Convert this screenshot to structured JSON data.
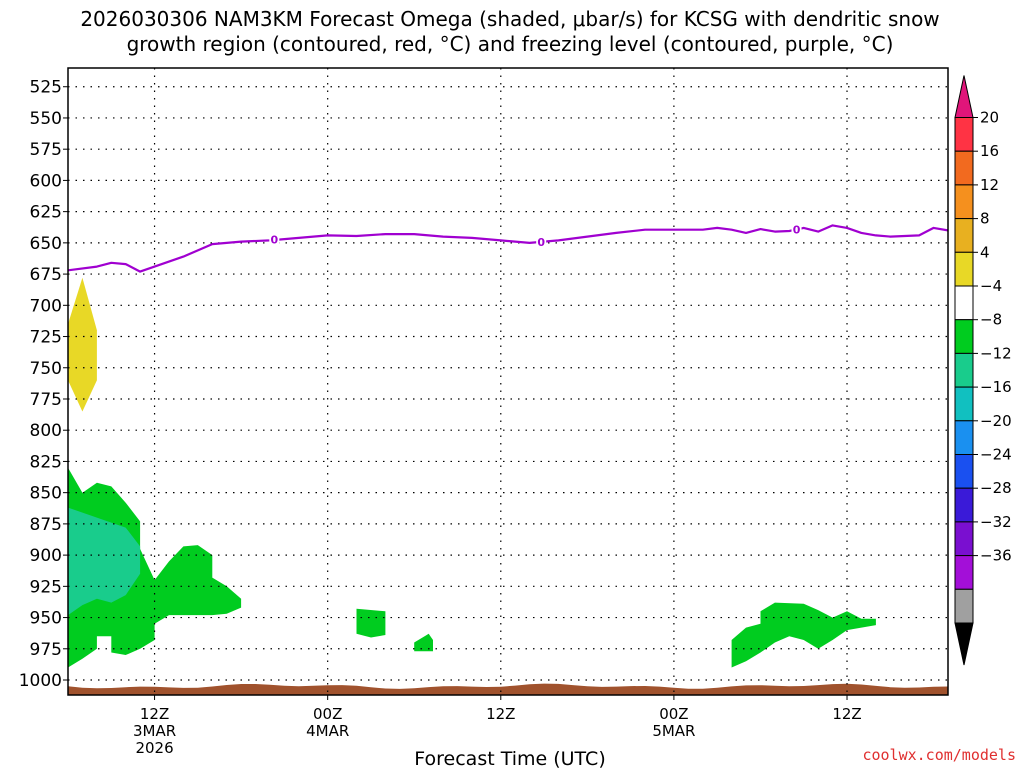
{
  "chart_data": {
    "type": "heatmap",
    "title_lines": [
      "2026030306 NAM3KM Forecast Omega (shaded, μbar/s) for KCSG with dendritic snow",
      "growth region (contoured, red, °C) and freezing level (contoured, purple, °C)"
    ],
    "xlabel": "Forecast Time (UTC)",
    "credit": "coolwx.com/models",
    "x_range_hours": [
      0,
      61
    ],
    "x_ticks": [
      {
        "hour": 6,
        "lines": [
          "12Z",
          "3MAR",
          "2026"
        ]
      },
      {
        "hour": 18,
        "lines": [
          "00Z",
          "4MAR"
        ]
      },
      {
        "hour": 30,
        "lines": [
          "12Z"
        ]
      },
      {
        "hour": 42,
        "lines": [
          "00Z",
          "5MAR"
        ]
      },
      {
        "hour": 54,
        "lines": [
          "12Z"
        ]
      }
    ],
    "y_range_mb": [
      510,
      1012
    ],
    "y_ticks": [
      "525",
      "550",
      "575",
      "600",
      "625",
      "650",
      "675",
      "700",
      "725",
      "750",
      "775",
      "800",
      "825",
      "850",
      "875",
      "900",
      "925",
      "950",
      "975",
      "1000"
    ],
    "colorbar": {
      "labels": [
        "20",
        "16",
        "12",
        "8",
        "4",
        "−4",
        "−8",
        "−12",
        "−16",
        "−20",
        "−24",
        "−28",
        "−32",
        "−36"
      ],
      "colors": [
        "#ff3344",
        "#f26a1f",
        "#f5901e",
        "#e8b020",
        "#e8d826",
        "#ffffff",
        "#00cc1f",
        "#19cc8c",
        "#11c0c0",
        "#1a90f0",
        "#1a50f0",
        "#3a1ad8",
        "#7a0fd0",
        "#a30fd8",
        "#a0a0a0"
      ],
      "top_arrow_color": "#e0157a",
      "bottom_arrow_color": "#000000"
    },
    "freezing_level": {
      "label": "0",
      "color": "#a000d0",
      "label_points": [
        [
          14.3,
          647.5
        ],
        [
          32.8,
          649.5
        ],
        [
          50.5,
          639.5
        ]
      ],
      "points": [
        [
          0,
          672
        ],
        [
          2,
          669
        ],
        [
          3,
          666
        ],
        [
          4,
          667
        ],
        [
          5,
          673
        ],
        [
          6,
          669
        ],
        [
          8,
          661
        ],
        [
          10,
          651
        ],
        [
          12,
          649
        ],
        [
          14,
          648
        ],
        [
          16,
          646
        ],
        [
          18,
          644
        ],
        [
          20,
          644.5
        ],
        [
          22,
          643
        ],
        [
          24,
          643
        ],
        [
          26,
          645
        ],
        [
          28,
          646
        ],
        [
          30,
          648
        ],
        [
          32,
          650
        ],
        [
          34,
          648
        ],
        [
          36,
          645
        ],
        [
          38,
          642
        ],
        [
          40,
          639.5
        ],
        [
          42,
          639.5
        ],
        [
          44,
          639.5
        ],
        [
          45,
          638
        ],
        [
          46,
          639.5
        ],
        [
          47,
          642
        ],
        [
          48,
          639
        ],
        [
          49,
          641
        ],
        [
          50,
          640.5
        ],
        [
          51,
          638
        ],
        [
          52,
          641
        ],
        [
          53,
          636
        ],
        [
          54,
          638
        ],
        [
          55,
          642
        ],
        [
          56,
          644
        ],
        [
          57,
          645
        ],
        [
          58,
          644.5
        ],
        [
          59,
          644
        ],
        [
          60,
          638
        ],
        [
          61,
          640
        ]
      ]
    },
    "omega_regions": [
      {
        "level": "4 to 8",
        "color": "#e8d826",
        "points": [
          [
            1,
            678
          ],
          [
            2,
            720
          ],
          [
            2,
            760
          ],
          [
            1,
            785
          ],
          [
            0,
            760
          ],
          [
            0,
            715
          ]
        ]
      },
      {
        "level": "-4 to -8",
        "color": "#00cc1f",
        "points": [
          [
            0,
            830
          ],
          [
            1,
            850
          ],
          [
            2,
            842
          ],
          [
            3,
            845
          ],
          [
            4,
            858
          ],
          [
            5,
            873
          ],
          [
            5,
            895
          ],
          [
            6,
            920
          ],
          [
            7,
            905
          ],
          [
            8,
            893
          ],
          [
            9,
            892
          ],
          [
            10,
            900
          ],
          [
            10,
            918
          ],
          [
            11,
            925
          ],
          [
            12,
            935
          ],
          [
            12,
            942
          ],
          [
            11,
            947
          ],
          [
            10,
            948
          ],
          [
            7,
            948
          ],
          [
            6,
            955
          ],
          [
            6,
            968
          ],
          [
            5,
            975
          ],
          [
            4,
            980
          ],
          [
            3,
            978
          ],
          [
            3,
            965
          ],
          [
            2,
            965
          ],
          [
            2,
            975
          ],
          [
            1,
            983
          ],
          [
            0,
            990
          ]
        ]
      },
      {
        "level": "-4 to -8",
        "color": "#00cc1f",
        "points": [
          [
            20,
            943
          ],
          [
            22,
            945
          ],
          [
            22,
            964
          ],
          [
            21,
            966
          ],
          [
            20,
            963
          ],
          [
            20,
            955
          ],
          [
            20,
            948
          ]
        ]
      },
      {
        "level": "-4 to -8",
        "color": "#00cc1f",
        "points": [
          [
            25,
            963
          ],
          [
            25.3,
            968
          ],
          [
            25.3,
            977
          ],
          [
            24,
            977
          ],
          [
            24,
            970
          ]
        ]
      },
      {
        "level": "-4 to -8",
        "color": "#00cc1f",
        "points": [
          [
            46,
            968
          ],
          [
            47,
            958
          ],
          [
            48,
            955
          ],
          [
            48,
            945
          ],
          [
            49,
            938
          ],
          [
            51,
            939
          ],
          [
            52,
            944
          ],
          [
            53,
            950
          ],
          [
            54,
            945
          ],
          [
            55,
            951
          ],
          [
            56,
            951
          ],
          [
            56,
            956
          ],
          [
            54,
            960
          ],
          [
            53,
            968
          ],
          [
            52,
            975
          ],
          [
            51,
            968
          ],
          [
            50,
            965
          ],
          [
            49,
            970
          ],
          [
            48,
            978
          ],
          [
            47,
            985
          ],
          [
            46,
            990
          ]
        ]
      },
      {
        "level": "-8 to -12",
        "color": "#19cc8c",
        "points": [
          [
            0,
            862
          ],
          [
            2,
            870
          ],
          [
            4,
            878
          ],
          [
            5,
            893
          ],
          [
            5,
            915
          ],
          [
            4,
            932
          ],
          [
            3,
            938
          ],
          [
            2,
            935
          ],
          [
            1,
            940
          ],
          [
            0,
            948
          ]
        ]
      }
    ],
    "terrain": {
      "color": "#a0522d",
      "top_mb": 1005
    }
  }
}
